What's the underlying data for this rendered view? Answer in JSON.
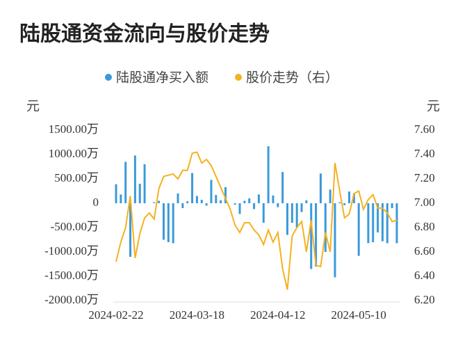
{
  "chart_data": {
    "type": "bar-line",
    "title": "陆股通资金流向与股价走势",
    "y_unit": "元",
    "y2_unit": "元",
    "categories": [
      "2024-02-22",
      null,
      null,
      null,
      null,
      null,
      null,
      null,
      null,
      null,
      null,
      null,
      null,
      null,
      null,
      null,
      null,
      "2024-03-18",
      null,
      null,
      null,
      null,
      null,
      null,
      null,
      null,
      null,
      null,
      null,
      null,
      null,
      null,
      null,
      null,
      "2024-04-12",
      null,
      null,
      null,
      null,
      null,
      null,
      null,
      null,
      null,
      null,
      null,
      null,
      null,
      null,
      null,
      null,
      "2024-05-10",
      null,
      null,
      null,
      null,
      null,
      null,
      null,
      null
    ],
    "series": [
      {
        "name": "陆股通净买入额",
        "color": "#3a9ad9",
        "type": "bar",
        "values": [
          390,
          180,
          850,
          -1100,
          980,
          400,
          800,
          0,
          20,
          50,
          -750,
          -800,
          -820,
          200,
          -100,
          40,
          620,
          150,
          70,
          -50,
          480,
          170,
          60,
          330,
          0,
          -30,
          -220,
          50,
          100,
          -120,
          180,
          -400,
          1170,
          160,
          -80,
          640,
          -650,
          -400,
          -500,
          -180,
          60,
          -1350,
          -1300,
          610,
          -1000,
          280,
          -1520,
          20,
          -40,
          240,
          200,
          -1080,
          0,
          -820,
          -800,
          -600,
          -780,
          -820,
          -100,
          -820
        ]
      },
      {
        "name": "股价走势（右）",
        "color": "#f5b120",
        "type": "line",
        "axis": "y2",
        "values": [
          6.52,
          6.68,
          6.8,
          7.06,
          6.55,
          6.75,
          6.88,
          6.92,
          6.87,
          7.12,
          7.22,
          7.23,
          7.24,
          7.2,
          7.27,
          7.27,
          7.41,
          7.42,
          7.33,
          7.36,
          7.31,
          7.22,
          7.13,
          7.04,
          6.95,
          6.82,
          6.76,
          6.84,
          6.84,
          6.78,
          6.74,
          6.66,
          6.78,
          6.68,
          6.76,
          6.46,
          6.29,
          6.73,
          6.8,
          6.85,
          6.6,
          6.86,
          6.49,
          6.48,
          6.76,
          6.6,
          7.33,
          7.1,
          6.88,
          6.91,
          7.08,
          7.1,
          6.95,
          7.03,
          7.07,
          6.96,
          6.96,
          6.92,
          6.85,
          6.86
        ]
      }
    ],
    "ylim": [
      -2000,
      1500
    ],
    "yticks": [
      {
        "value": -2000,
        "label": "-2000.00万"
      },
      {
        "value": -1500,
        "label": "-1500.00万"
      },
      {
        "value": -1000,
        "label": "-1000.00万"
      },
      {
        "value": -500,
        "label": "-500.00万"
      },
      0,
      {
        "value": 500,
        "label": "500.00万"
      },
      {
        "value": 1000,
        "label": "1000.00万"
      },
      {
        "value": 1500,
        "label": "1500.00万"
      }
    ],
    "y2lim": [
      6.2,
      7.6
    ],
    "y2ticks": [
      {
        "value": 6.2,
        "label": "6.20"
      },
      {
        "value": 6.4,
        "label": "6.40"
      },
      {
        "value": 6.6,
        "label": "6.60"
      },
      {
        "value": 6.8,
        "label": "6.80"
      },
      {
        "value": 7.0,
        "label": "7.00"
      },
      {
        "value": 7.2,
        "label": "7.20"
      },
      {
        "value": 7.4,
        "label": "7.40"
      },
      {
        "value": 7.6,
        "label": "7.60"
      }
    ]
  }
}
